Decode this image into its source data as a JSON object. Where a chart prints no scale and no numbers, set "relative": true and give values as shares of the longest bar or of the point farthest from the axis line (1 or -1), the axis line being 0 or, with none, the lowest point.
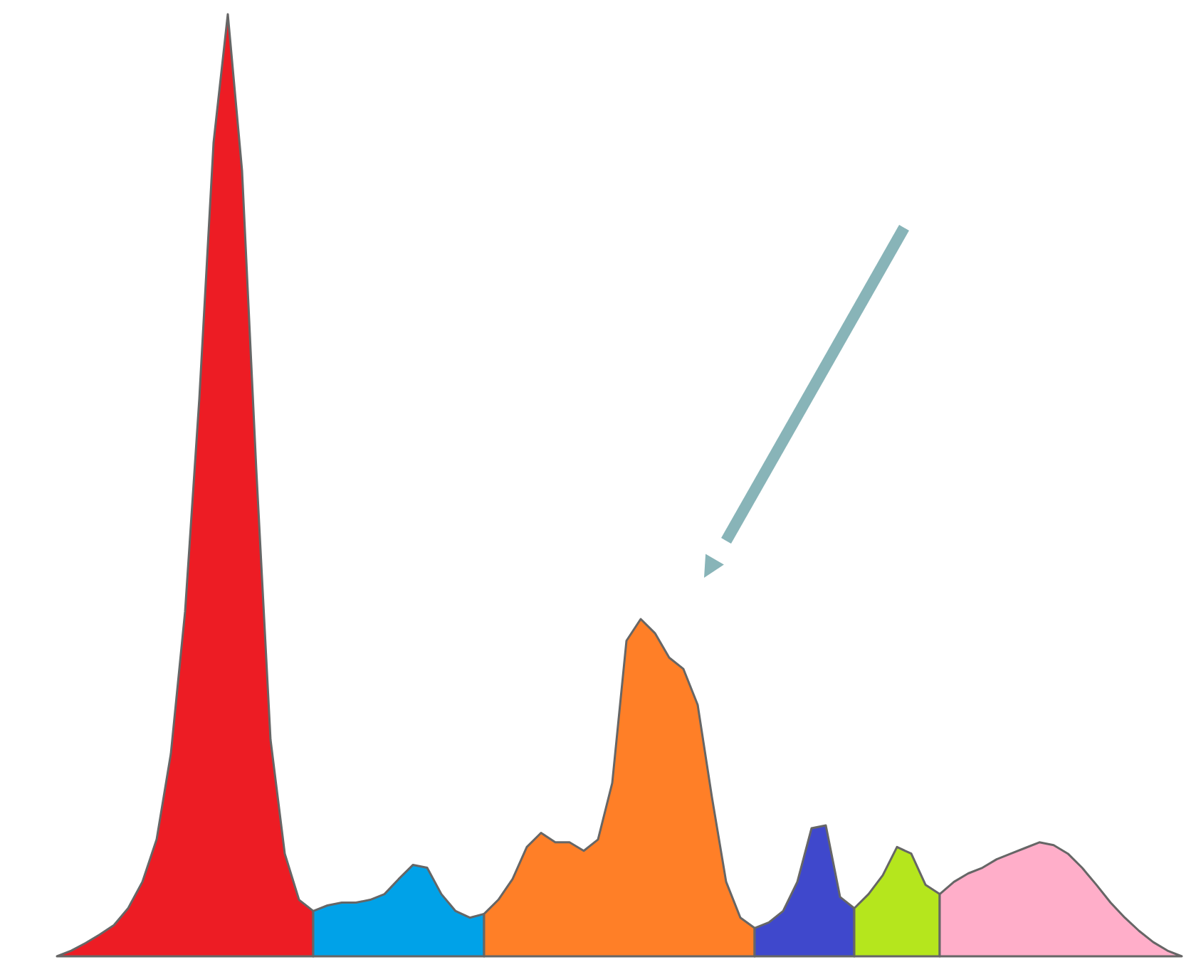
{
  "chart_data": {
    "type": "area",
    "relative": true,
    "categories": [
      null,
      null,
      null,
      null,
      null,
      null,
      null,
      null,
      null,
      null,
      null,
      null,
      null,
      null,
      null,
      null,
      null,
      null,
      null,
      null,
      null,
      null,
      null,
      null,
      null,
      null,
      null,
      null,
      null,
      null,
      null,
      null,
      null,
      null,
      null,
      null,
      null,
      null,
      null,
      null,
      null,
      null,
      null,
      null,
      null,
      null,
      null,
      null,
      null,
      null,
      null,
      null,
      null,
      null,
      null,
      null,
      null,
      null,
      null,
      null,
      null,
      null,
      null,
      null,
      null,
      null,
      null,
      null,
      null,
      null,
      null,
      null,
      null,
      null,
      null,
      null,
      null,
      null,
      null,
      null
    ],
    "series": [
      {
        "color": "#ed1c24",
        "values": [
          0,
          0.006,
          0.014,
          0.023,
          0.033,
          0.051,
          0.079,
          0.124,
          0.215,
          0.366,
          0.592,
          0.864,
          1.0,
          0.834,
          0.517,
          0.23,
          0.109,
          0.06,
          0.048,
          null,
          null,
          null,
          null,
          null,
          null,
          null,
          null,
          null,
          null,
          null,
          null,
          null,
          null,
          null,
          null,
          null,
          null,
          null,
          null,
          null,
          null,
          null,
          null,
          null,
          null,
          null,
          null,
          null,
          null,
          null,
          null,
          null,
          null,
          null,
          null,
          null,
          null,
          null,
          null,
          null,
          null,
          null,
          null,
          null,
          null,
          null,
          null,
          null,
          null,
          null,
          null,
          null,
          null,
          null,
          null,
          null,
          null,
          null,
          null,
          null
        ]
      },
      {
        "color": "#00a2e8",
        "values": [
          null,
          null,
          null,
          null,
          null,
          null,
          null,
          null,
          null,
          null,
          null,
          null,
          null,
          null,
          null,
          null,
          null,
          null,
          0.048,
          0.054,
          0.057,
          0.057,
          0.06,
          0.066,
          0.082,
          0.097,
          0.094,
          0.066,
          0.048,
          0.041,
          0.045,
          null,
          null,
          null,
          null,
          null,
          null,
          null,
          null,
          null,
          null,
          null,
          null,
          null,
          null,
          null,
          null,
          null,
          null,
          null,
          null,
          null,
          null,
          null,
          null,
          null,
          null,
          null,
          null,
          null,
          null,
          null,
          null,
          null,
          null,
          null,
          null,
          null,
          null,
          null,
          null,
          null,
          null,
          null,
          null,
          null,
          null,
          null,
          null,
          null
        ]
      },
      {
        "color": "#ff7f27",
        "values": [
          null,
          null,
          null,
          null,
          null,
          null,
          null,
          null,
          null,
          null,
          null,
          null,
          null,
          null,
          null,
          null,
          null,
          null,
          null,
          null,
          null,
          null,
          null,
          null,
          null,
          null,
          null,
          null,
          null,
          null,
          0.045,
          0.06,
          0.082,
          0.116,
          0.131,
          0.121,
          0.121,
          0.112,
          0.124,
          0.184,
          0.335,
          0.358,
          0.343,
          0.317,
          0.305,
          0.267,
          0.169,
          0.079,
          0.041,
          0.03,
          null,
          null,
          null,
          null,
          null,
          null,
          null,
          null,
          null,
          null,
          null,
          null,
          null,
          null,
          null,
          null,
          null,
          null,
          null,
          null,
          null,
          null,
          null,
          null,
          null,
          null,
          null,
          null,
          null,
          null
        ]
      },
      {
        "color": "#3f48cc",
        "values": [
          null,
          null,
          null,
          null,
          null,
          null,
          null,
          null,
          null,
          null,
          null,
          null,
          null,
          null,
          null,
          null,
          null,
          null,
          null,
          null,
          null,
          null,
          null,
          null,
          null,
          null,
          null,
          null,
          null,
          null,
          null,
          null,
          null,
          null,
          null,
          null,
          null,
          null,
          null,
          null,
          null,
          null,
          null,
          null,
          null,
          null,
          null,
          null,
          null,
          0.03,
          0.036,
          0.048,
          0.079,
          0.136,
          0.139,
          0.063,
          0.051,
          null,
          null,
          null,
          null,
          null,
          null,
          null,
          null,
          null,
          null,
          null,
          null,
          null,
          null,
          null,
          null,
          null,
          null,
          null,
          null,
          null,
          null,
          null
        ]
      },
      {
        "color": "#b5e61d",
        "values": [
          null,
          null,
          null,
          null,
          null,
          null,
          null,
          null,
          null,
          null,
          null,
          null,
          null,
          null,
          null,
          null,
          null,
          null,
          null,
          null,
          null,
          null,
          null,
          null,
          null,
          null,
          null,
          null,
          null,
          null,
          null,
          null,
          null,
          null,
          null,
          null,
          null,
          null,
          null,
          null,
          null,
          null,
          null,
          null,
          null,
          null,
          null,
          null,
          null,
          null,
          null,
          null,
          null,
          null,
          null,
          null,
          0.051,
          0.066,
          0.086,
          0.116,
          0.109,
          0.076,
          0.066,
          null,
          null,
          null,
          null,
          null,
          null,
          null,
          null,
          null,
          null,
          null,
          null,
          null,
          null,
          null,
          null,
          null
        ]
      },
      {
        "color": "#ffaec9",
        "values": [
          null,
          null,
          null,
          null,
          null,
          null,
          null,
          null,
          null,
          null,
          null,
          null,
          null,
          null,
          null,
          null,
          null,
          null,
          null,
          null,
          null,
          null,
          null,
          null,
          null,
          null,
          null,
          null,
          null,
          null,
          null,
          null,
          null,
          null,
          null,
          null,
          null,
          null,
          null,
          null,
          null,
          null,
          null,
          null,
          null,
          null,
          null,
          null,
          null,
          null,
          null,
          null,
          null,
          null,
          null,
          null,
          null,
          null,
          null,
          null,
          null,
          null,
          0.066,
          0.079,
          0.088,
          0.094,
          0.103,
          0.109,
          0.115,
          0.121,
          0.118,
          0.109,
          0.094,
          0.076,
          0.057,
          0.041,
          0.027,
          0.015,
          0.006,
          0
        ]
      }
    ]
  }
}
